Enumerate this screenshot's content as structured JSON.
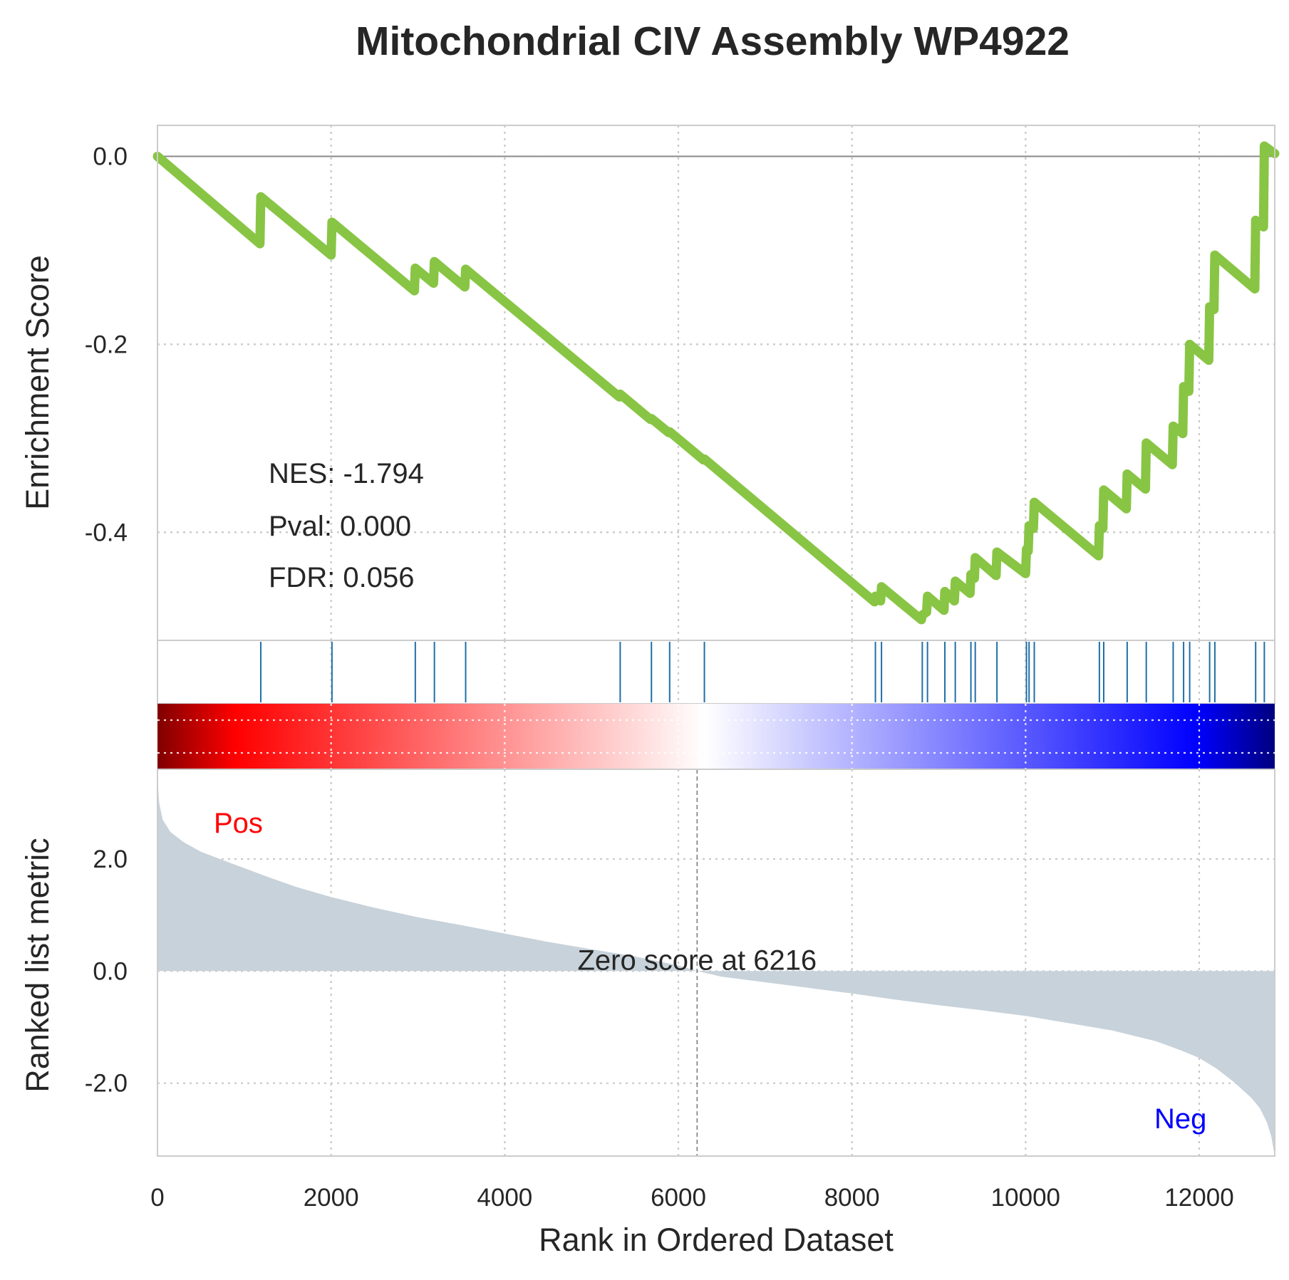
{
  "chart_data": {
    "type": "line",
    "title": "Mitochondrial CIV Assembly WP4922",
    "xlabel": "Rank in Ordered Dataset",
    "xlim": [
      0,
      12870
    ],
    "x_ticks": [
      0,
      2000,
      4000,
      6000,
      8000,
      10000,
      12000
    ],
    "x_tick_labels": [
      "0",
      "2000",
      "4000",
      "6000",
      "8000",
      "10000",
      "12000"
    ],
    "grid": true,
    "enrichment_panel": {
      "ylabel": "Enrichment Score",
      "ylim": [
        -0.515,
        0.033
      ],
      "y_ticks": [
        0.0,
        -0.2,
        -0.4
      ],
      "y_tick_labels": [
        "0.0",
        "-0.2",
        "-0.4"
      ],
      "baseline": 0.0,
      "line_color": "#88c544",
      "running_es": [
        [
          0,
          0.0
        ],
        [
          1180,
          -0.093
        ],
        [
          1190,
          -0.043
        ],
        [
          2000,
          -0.105
        ],
        [
          2010,
          -0.07
        ],
        [
          2960,
          -0.143
        ],
        [
          2970,
          -0.119
        ],
        [
          3180,
          -0.135
        ],
        [
          3190,
          -0.112
        ],
        [
          3540,
          -0.139
        ],
        [
          3550,
          -0.12
        ],
        [
          5320,
          -0.256
        ],
        [
          5330,
          -0.253
        ],
        [
          5680,
          -0.28
        ],
        [
          5690,
          -0.279
        ],
        [
          5890,
          -0.294
        ],
        [
          5900,
          -0.293
        ],
        [
          6290,
          -0.323
        ],
        [
          6300,
          -0.322
        ],
        [
          8260,
          -0.474
        ],
        [
          8270,
          -0.468
        ],
        [
          8330,
          -0.473
        ],
        [
          8340,
          -0.458
        ],
        [
          8800,
          -0.493
        ],
        [
          8810,
          -0.488
        ],
        [
          8860,
          -0.485
        ],
        [
          8870,
          -0.468
        ],
        [
          9060,
          -0.483
        ],
        [
          9070,
          -0.463
        ],
        [
          9180,
          -0.473
        ],
        [
          9190,
          -0.452
        ],
        [
          9360,
          -0.465
        ],
        [
          9370,
          -0.445
        ],
        [
          9410,
          -0.449
        ],
        [
          9420,
          -0.427
        ],
        [
          9660,
          -0.446
        ],
        [
          9670,
          -0.421
        ],
        [
          10000,
          -0.444
        ],
        [
          10010,
          -0.418
        ],
        [
          10030,
          -0.42
        ],
        [
          10040,
          -0.393
        ],
        [
          10090,
          -0.396
        ],
        [
          10100,
          -0.368
        ],
        [
          10840,
          -0.425
        ],
        [
          10850,
          -0.393
        ],
        [
          10890,
          -0.396
        ],
        [
          10900,
          -0.355
        ],
        [
          11160,
          -0.375
        ],
        [
          11170,
          -0.338
        ],
        [
          11380,
          -0.354
        ],
        [
          11390,
          -0.305
        ],
        [
          11690,
          -0.328
        ],
        [
          11700,
          -0.287
        ],
        [
          11810,
          -0.295
        ],
        [
          11820,
          -0.245
        ],
        [
          11880,
          -0.25
        ],
        [
          11890,
          -0.2
        ],
        [
          12110,
          -0.217
        ],
        [
          12120,
          -0.16
        ],
        [
          12170,
          -0.163
        ],
        [
          12180,
          -0.105
        ],
        [
          12640,
          -0.141
        ],
        [
          12650,
          -0.068
        ],
        [
          12740,
          -0.075
        ],
        [
          12750,
          0.011
        ],
        [
          12870,
          0.003
        ]
      ],
      "annotations": [
        "NES: -1.794",
        "Pval: 0.000",
        "FDR: 0.056"
      ]
    },
    "hits_panel": {
      "color": "#1f6fa8",
      "hit_ranks": [
        1190,
        2010,
        2970,
        3190,
        3550,
        5330,
        5690,
        5900,
        6300,
        8270,
        8340,
        8810,
        8870,
        9070,
        9190,
        9370,
        9420,
        9670,
        10010,
        10040,
        10100,
        10850,
        10900,
        11170,
        11390,
        11700,
        11820,
        11890,
        12120,
        12180,
        12650,
        12750
      ]
    },
    "colorbar": {
      "colors": [
        "#800000",
        "#ff0000",
        "#ffffff",
        "#0000ff",
        "#000080"
      ]
    },
    "ranked_metric_panel": {
      "ylabel": "Ranked list metric",
      "ylim": [
        -3.3,
        3.6
      ],
      "y_ticks": [
        2.0,
        0.0,
        -2.0
      ],
      "y_tick_labels": [
        "2.0",
        "0.0",
        "-2.0"
      ],
      "fill_color": "#c8d2da",
      "metric_curve": [
        [
          0,
          3.45
        ],
        [
          20,
          3.0
        ],
        [
          60,
          2.7
        ],
        [
          150,
          2.48
        ],
        [
          300,
          2.3
        ],
        [
          500,
          2.13
        ],
        [
          800,
          1.95
        ],
        [
          1200,
          1.72
        ],
        [
          1600,
          1.5
        ],
        [
          2000,
          1.32
        ],
        [
          2500,
          1.13
        ],
        [
          3000,
          0.96
        ],
        [
          3500,
          0.82
        ],
        [
          4000,
          0.67
        ],
        [
          4500,
          0.52
        ],
        [
          5000,
          0.39
        ],
        [
          5500,
          0.26
        ],
        [
          6000,
          0.1
        ],
        [
          6216,
          0.0
        ],
        [
          6500,
          -0.1
        ],
        [
          7000,
          -0.2
        ],
        [
          7500,
          -0.3
        ],
        [
          8000,
          -0.4
        ],
        [
          8500,
          -0.51
        ],
        [
          9000,
          -0.61
        ],
        [
          9500,
          -0.7
        ],
        [
          10000,
          -0.8
        ],
        [
          10500,
          -0.93
        ],
        [
          11000,
          -1.06
        ],
        [
          11500,
          -1.25
        ],
        [
          11800,
          -1.42
        ],
        [
          12000,
          -1.55
        ],
        [
          12200,
          -1.74
        ],
        [
          12400,
          -1.98
        ],
        [
          12600,
          -2.26
        ],
        [
          12700,
          -2.45
        ],
        [
          12780,
          -2.7
        ],
        [
          12830,
          -2.95
        ],
        [
          12870,
          -3.3
        ]
      ],
      "zero_cross_rank": 6216,
      "zero_cross_label": "Zero score at 6216",
      "pos_label": "Pos",
      "neg_label": "Neg",
      "pos_color": "#ff0000",
      "neg_color": "#0000ff"
    }
  }
}
